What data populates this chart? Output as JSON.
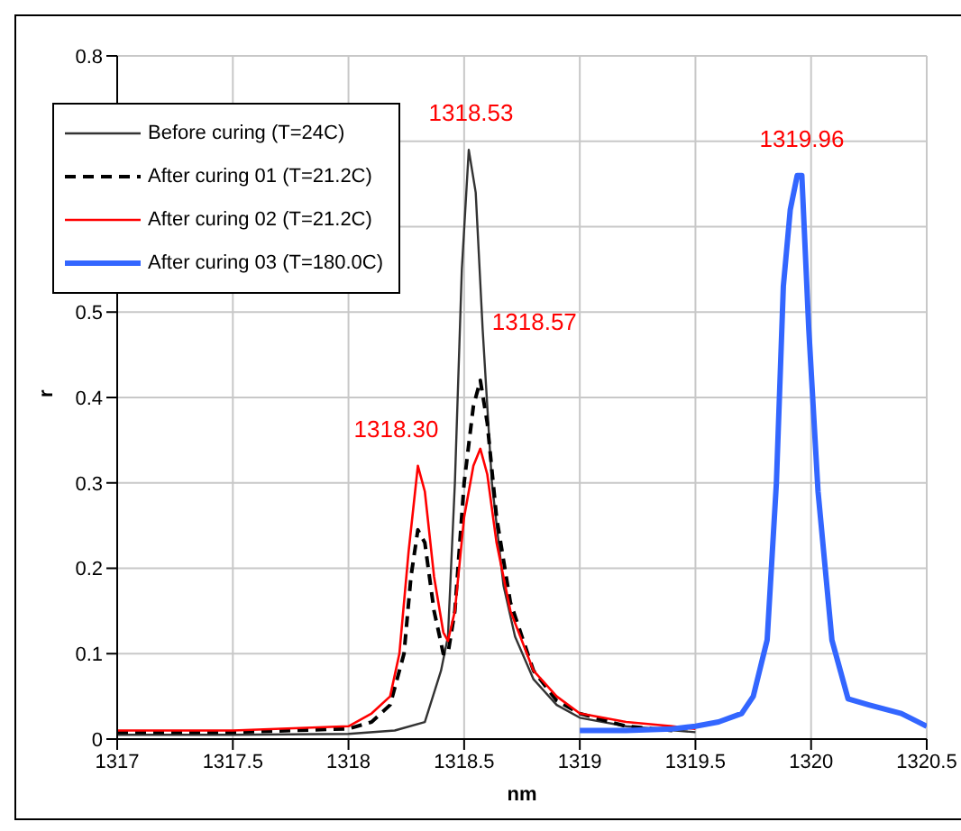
{
  "chart_data": {
    "type": "line",
    "xlabel": "nm",
    "ylabel": "r",
    "xlim": [
      1317,
      1320.5
    ],
    "xticks": [
      1317,
      1317.5,
      1318,
      1318.5,
      1319,
      1319.5,
      1320,
      1320.5
    ],
    "ylim": [
      0,
      0.8
    ],
    "yticks": [
      0,
      0.1,
      0.2,
      0.3,
      0.4,
      0.5,
      {
        "value": 0.6,
        "label": null
      },
      {
        "value": 0.7,
        "label": null
      },
      0.8
    ],
    "grid": true,
    "legend": "top left",
    "marker": "none",
    "annotations": [
      {
        "text": "1318.53",
        "x": 1318.53,
        "y": 0.69
      },
      {
        "text": "1318.30",
        "x": 1318.3,
        "y": 0.32
      },
      {
        "text": "1318.57",
        "x": 1318.57,
        "y": 0.42
      },
      {
        "text": "1319.96",
        "x": 1319.96,
        "y": 0.66
      }
    ],
    "series": [
      {
        "name": "Before curing (T=24C)",
        "color": "#333333",
        "line_style": "solid",
        "x": [
          1317,
          1317.5,
          1318,
          1318.2,
          1318.33,
          1318.4,
          1318.43,
          1318.46,
          1318.49,
          1318.52,
          1318.55,
          1318.58,
          1318.62,
          1318.67,
          1318.72,
          1318.8,
          1318.9,
          1319,
          1319.2,
          1319.5
        ],
        "values": [
          0.005,
          0.005,
          0.006,
          0.01,
          0.02,
          0.08,
          0.12,
          0.3,
          0.55,
          0.69,
          0.64,
          0.48,
          0.3,
          0.18,
          0.12,
          0.07,
          0.04,
          0.025,
          0.015,
          0.008
        ]
      },
      {
        "name": "After curing 01 (T=21.2C)",
        "color": "#000000",
        "line_style": "dashed",
        "x": [
          1317,
          1317.5,
          1318,
          1318.1,
          1318.18,
          1318.24,
          1318.27,
          1318.3,
          1318.33,
          1318.37,
          1318.41,
          1318.43,
          1318.46,
          1318.5,
          1318.54,
          1318.57,
          1318.6,
          1318.64,
          1318.7,
          1318.8,
          1318.9,
          1319,
          1319.2,
          1319.4
        ],
        "values": [
          0.008,
          0.008,
          0.012,
          0.02,
          0.04,
          0.1,
          0.19,
          0.245,
          0.23,
          0.15,
          0.1,
          0.1,
          0.15,
          0.3,
          0.39,
          0.42,
          0.37,
          0.26,
          0.16,
          0.08,
          0.045,
          0.03,
          0.015,
          0.01
        ]
      },
      {
        "name": "After curing 02 (T=21.2C)",
        "color": "#ff0000",
        "line_style": "solid",
        "x": [
          1317,
          1317.5,
          1318,
          1318.1,
          1318.18,
          1318.22,
          1318.26,
          1318.3,
          1318.33,
          1318.37,
          1318.41,
          1318.43,
          1318.46,
          1318.5,
          1318.54,
          1318.57,
          1318.6,
          1318.64,
          1318.7,
          1318.8,
          1318.9,
          1319,
          1319.2,
          1319.4,
          1319.5
        ],
        "values": [
          0.01,
          0.01,
          0.015,
          0.03,
          0.05,
          0.1,
          0.22,
          0.32,
          0.29,
          0.19,
          0.125,
          0.115,
          0.15,
          0.26,
          0.32,
          0.34,
          0.31,
          0.23,
          0.15,
          0.08,
          0.05,
          0.03,
          0.02,
          0.015,
          0.012
        ]
      },
      {
        "name": "After curing 03 (T=180.0C)",
        "color": "#3366ff",
        "line_style": "solid",
        "x": [
          1319,
          1319.2,
          1319.4,
          1319.5,
          1319.6,
          1319.7,
          1319.75,
          1319.81,
          1319.85,
          1319.88,
          1319.91,
          1319.94,
          1319.96,
          1319.99,
          1320.03,
          1320.09,
          1320.16,
          1320.25,
          1320.39,
          1320.5
        ],
        "values": [
          0.01,
          0.01,
          0.012,
          0.015,
          0.02,
          0.03,
          0.05,
          0.116,
          0.3,
          0.53,
          0.62,
          0.66,
          0.66,
          0.48,
          0.29,
          0.116,
          0.047,
          0.04,
          0.03,
          0.015
        ]
      }
    ]
  }
}
